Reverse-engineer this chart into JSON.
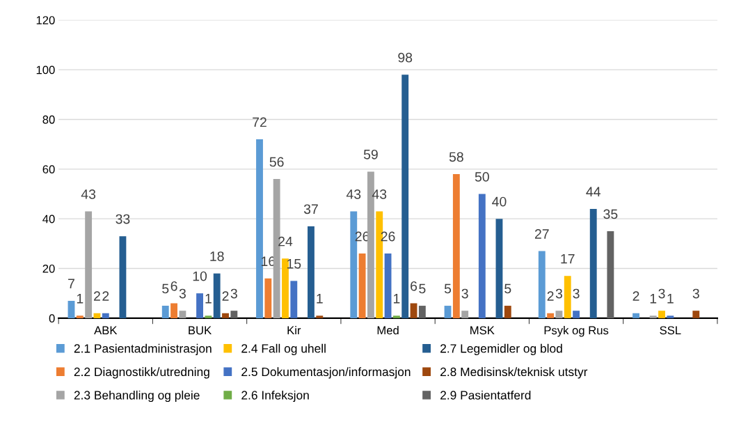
{
  "chart_data": {
    "type": "bar",
    "categories": [
      "ABK",
      "BUK",
      "Kir",
      "Med",
      "MSK",
      "Psyk og Rus",
      "SSL"
    ],
    "series": [
      {
        "name": "2.1 Pasientadministrasjon",
        "color": "#5b9bd5",
        "values": [
          7,
          5,
          72,
          43,
          5,
          27,
          2
        ]
      },
      {
        "name": "2.2 Diagnostikk/utredning",
        "color": "#ed7d31",
        "values": [
          1,
          6,
          16,
          26,
          58,
          2,
          null
        ]
      },
      {
        "name": "2.3 Behandling og pleie",
        "color": "#a5a5a5",
        "values": [
          43,
          3,
          56,
          59,
          3,
          3,
          1
        ]
      },
      {
        "name": "2.4 Fall og uhell",
        "color": "#ffc000",
        "values": [
          2,
          null,
          24,
          43,
          null,
          17,
          3
        ]
      },
      {
        "name": "2.5 Dokumentasjon/informasjon",
        "color": "#4472c4",
        "values": [
          2,
          10,
          15,
          26,
          50,
          3,
          1
        ]
      },
      {
        "name": "2.6 Infeksjon",
        "color": "#70ad47",
        "values": [
          null,
          1,
          null,
          1,
          null,
          null,
          null
        ]
      },
      {
        "name": "2.7 Legemidler og blod",
        "color": "#255e91",
        "values": [
          33,
          18,
          37,
          98,
          40,
          44,
          null
        ]
      },
      {
        "name": "2.8 Medisinsk/teknisk utstyr",
        "color": "#9e480e",
        "values": [
          null,
          2,
          1,
          6,
          5,
          null,
          3
        ]
      },
      {
        "name": "2.9 Pasientatferd",
        "color": "#636363",
        "values": [
          null,
          3,
          null,
          5,
          null,
          35,
          null
        ]
      }
    ],
    "ylim": [
      0,
      120
    ],
    "yticks": [
      0,
      20,
      40,
      60,
      80,
      100,
      120
    ],
    "grid": "y",
    "legend": "bottom",
    "data_labels": true
  }
}
